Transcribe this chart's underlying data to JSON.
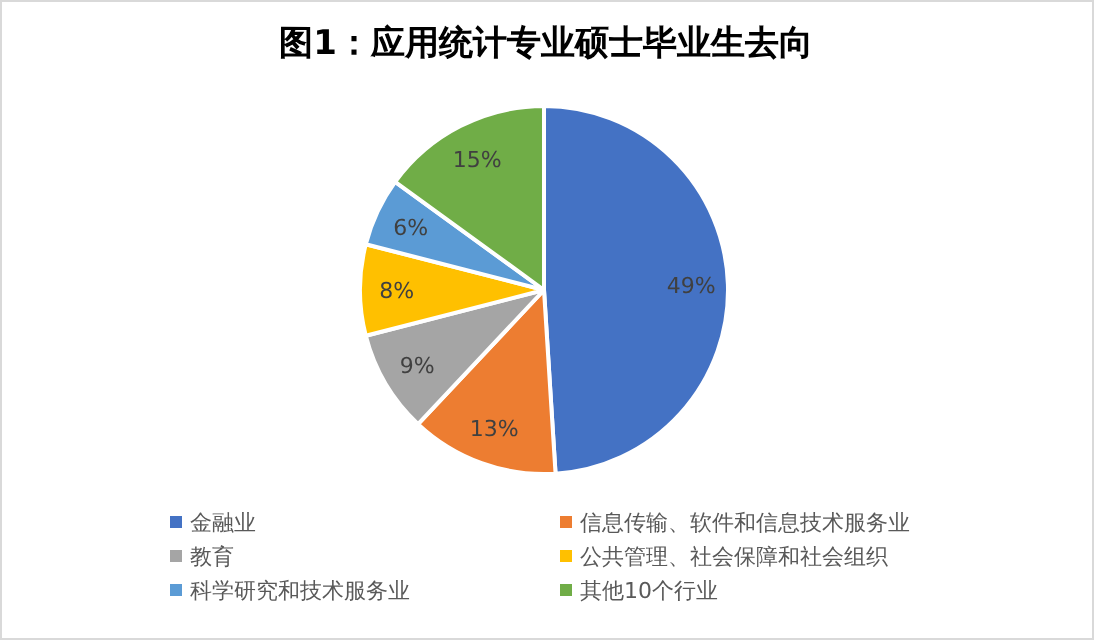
{
  "chart_data": {
    "type": "pie",
    "title": "图1：应用统计专业硕士毕业生去向",
    "categories": [
      "金融业",
      "信息传输、软件和信息技术服务业",
      "教育",
      "公共管理、社会保障和社会组织",
      "科学研究和技术服务业",
      "其他10个行业"
    ],
    "values": [
      49,
      13,
      9,
      8,
      6,
      15
    ],
    "value_labels": [
      "49%",
      "13%",
      "9%",
      "8%",
      "6%",
      "15%"
    ],
    "colors": [
      "#4472c4",
      "#ed7d31",
      "#a5a5a5",
      "#ffc000",
      "#5b9bd5",
      "#70ad47"
    ],
    "legend": "bottom"
  }
}
